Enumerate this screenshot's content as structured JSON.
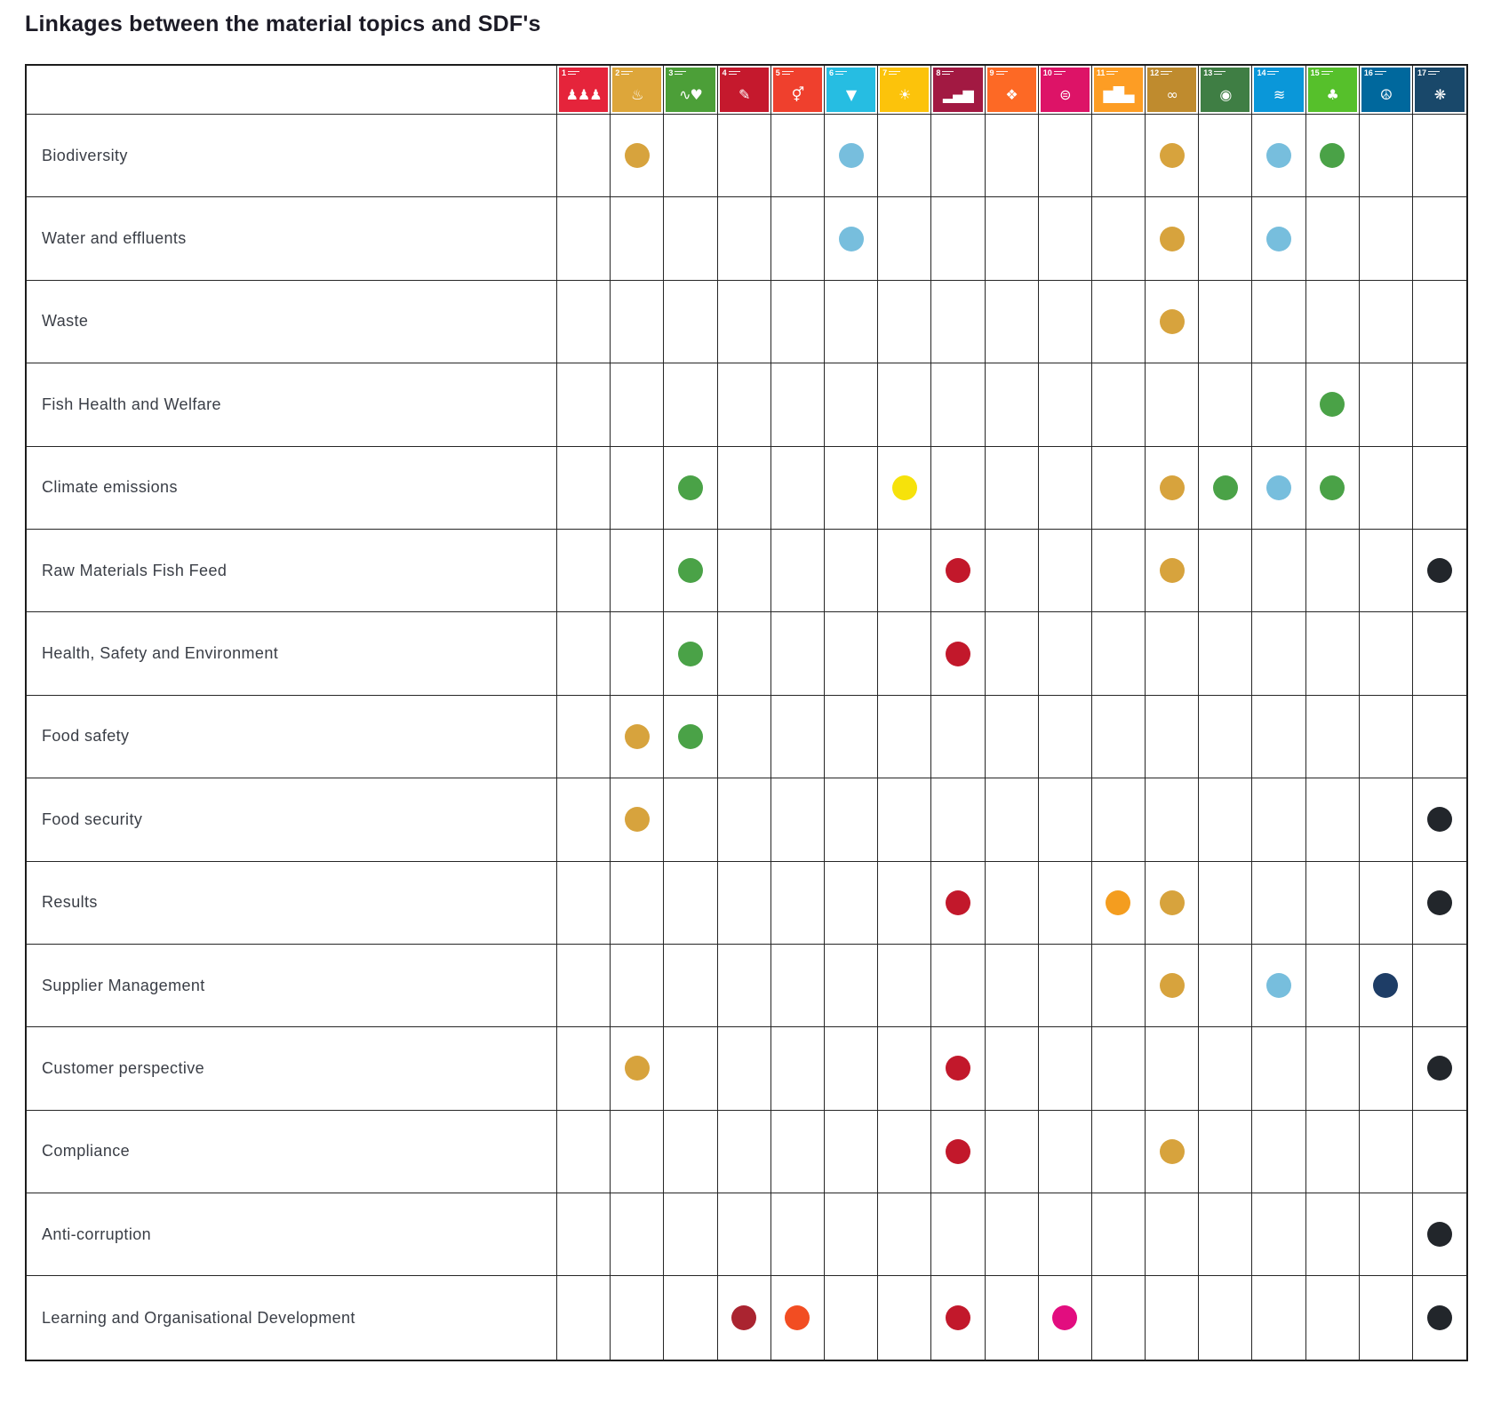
{
  "chart_data": {
    "type": "matrix",
    "title": "Linkages between the material topics and SDF's",
    "legend_note": "dots mark linkage between a material topic (row) and an SDG (column)",
    "sdg_columns": [
      {
        "num": "1",
        "name": "no-poverty",
        "color": "#E5243B",
        "glyph": "♟♟♟"
      },
      {
        "num": "2",
        "name": "zero-hunger",
        "color": "#DDA63A",
        "glyph": "♨"
      },
      {
        "num": "3",
        "name": "good-health-and-wellbeing",
        "color": "#4C9F38",
        "glyph": "∿♥"
      },
      {
        "num": "4",
        "name": "quality-education",
        "color": "#C5192D",
        "glyph": "✎"
      },
      {
        "num": "5",
        "name": "gender-equality",
        "color": "#EF402D",
        "glyph": "⚥"
      },
      {
        "num": "6",
        "name": "clean-water-and-sanitation",
        "color": "#26BDE2",
        "glyph": "▼"
      },
      {
        "num": "7",
        "name": "affordable-clean-energy",
        "color": "#FCC30B",
        "glyph": "☀"
      },
      {
        "num": "8",
        "name": "decent-work-economic-growth",
        "color": "#A21942",
        "glyph": "▂▄▆"
      },
      {
        "num": "9",
        "name": "industry-innovation",
        "color": "#FD6925",
        "glyph": "❖"
      },
      {
        "num": "10",
        "name": "reduced-inequalities",
        "color": "#DD1367",
        "glyph": "⊜"
      },
      {
        "num": "11",
        "name": "sustainable-cities",
        "color": "#FD9D24",
        "glyph": "▆█▄"
      },
      {
        "num": "12",
        "name": "responsible-consumption",
        "color": "#BF8B2E",
        "glyph": "∞"
      },
      {
        "num": "13",
        "name": "climate-action",
        "color": "#3F7E44",
        "glyph": "◉"
      },
      {
        "num": "14",
        "name": "life-below-water",
        "color": "#0A97D9",
        "glyph": "≋"
      },
      {
        "num": "15",
        "name": "life-on-land",
        "color": "#56C02B",
        "glyph": "♣"
      },
      {
        "num": "16",
        "name": "peace-justice-institutions",
        "color": "#00689D",
        "glyph": "☮"
      },
      {
        "num": "17",
        "name": "partnerships-for-the-goals",
        "color": "#19486A",
        "glyph": "❋"
      }
    ],
    "dot_colors": {
      "mustard": "#D7A33D",
      "lightblue": "#77BEDD",
      "green": "#4AA247",
      "yellow": "#F6E20B",
      "crimson": "#C2182B",
      "orange": "#F49D1F",
      "black": "#22262B",
      "navy": "#1E3D66",
      "darkred": "#AA2430",
      "orangered": "#F24D22",
      "magenta": "#E20D7F"
    },
    "rows": [
      {
        "label": "Biodiversity",
        "dots": [
          {
            "sdg": 2,
            "color": "mustard"
          },
          {
            "sdg": 6,
            "color": "lightblue"
          },
          {
            "sdg": 12,
            "color": "mustard"
          },
          {
            "sdg": 14,
            "color": "lightblue"
          },
          {
            "sdg": 15,
            "color": "green"
          }
        ]
      },
      {
        "label": "Water and effluents",
        "dots": [
          {
            "sdg": 6,
            "color": "lightblue"
          },
          {
            "sdg": 12,
            "color": "mustard"
          },
          {
            "sdg": 14,
            "color": "lightblue"
          }
        ]
      },
      {
        "label": "Waste",
        "dots": [
          {
            "sdg": 12,
            "color": "mustard"
          }
        ]
      },
      {
        "label": "Fish Health and Welfare",
        "dots": [
          {
            "sdg": 15,
            "color": "green"
          }
        ]
      },
      {
        "label": "Climate emissions",
        "dots": [
          {
            "sdg": 3,
            "color": "green"
          },
          {
            "sdg": 7,
            "color": "yellow"
          },
          {
            "sdg": 12,
            "color": "mustard"
          },
          {
            "sdg": 13,
            "color": "green"
          },
          {
            "sdg": 14,
            "color": "lightblue"
          },
          {
            "sdg": 15,
            "color": "green"
          }
        ]
      },
      {
        "label": "Raw Materials Fish Feed",
        "dots": [
          {
            "sdg": 3,
            "color": "green"
          },
          {
            "sdg": 8,
            "color": "crimson"
          },
          {
            "sdg": 12,
            "color": "mustard"
          },
          {
            "sdg": 17,
            "color": "black"
          }
        ]
      },
      {
        "label": "Health, Safety and Environment",
        "dots": [
          {
            "sdg": 3,
            "color": "green"
          },
          {
            "sdg": 8,
            "color": "crimson"
          }
        ]
      },
      {
        "label": "Food safety",
        "dots": [
          {
            "sdg": 2,
            "color": "mustard"
          },
          {
            "sdg": 3,
            "color": "green"
          }
        ]
      },
      {
        "label": "Food security",
        "dots": [
          {
            "sdg": 2,
            "color": "mustard"
          },
          {
            "sdg": 17,
            "color": "black"
          }
        ]
      },
      {
        "label": "Results",
        "dots": [
          {
            "sdg": 8,
            "color": "crimson"
          },
          {
            "sdg": 11,
            "color": "orange"
          },
          {
            "sdg": 12,
            "color": "mustard"
          },
          {
            "sdg": 17,
            "color": "black"
          }
        ]
      },
      {
        "label": "Supplier Management",
        "dots": [
          {
            "sdg": 12,
            "color": "mustard"
          },
          {
            "sdg": 14,
            "color": "lightblue"
          },
          {
            "sdg": 16,
            "color": "navy"
          }
        ]
      },
      {
        "label": "Customer perspective",
        "dots": [
          {
            "sdg": 2,
            "color": "mustard"
          },
          {
            "sdg": 8,
            "color": "crimson"
          },
          {
            "sdg": 17,
            "color": "black"
          }
        ]
      },
      {
        "label": "Compliance",
        "dots": [
          {
            "sdg": 8,
            "color": "crimson"
          },
          {
            "sdg": 12,
            "color": "mustard"
          }
        ]
      },
      {
        "label": "Anti-corruption",
        "dots": [
          {
            "sdg": 17,
            "color": "black"
          }
        ]
      },
      {
        "label": "Learning and Organisational Development",
        "dots": [
          {
            "sdg": 4,
            "color": "darkred"
          },
          {
            "sdg": 5,
            "color": "orangered"
          },
          {
            "sdg": 8,
            "color": "crimson"
          },
          {
            "sdg": 10,
            "color": "magenta"
          },
          {
            "sdg": 17,
            "color": "black"
          }
        ]
      }
    ]
  }
}
